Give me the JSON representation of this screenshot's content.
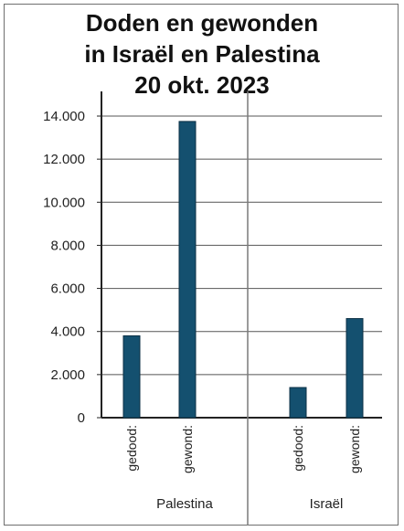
{
  "title_lines": [
    "Doden en gewonden",
    "in Israël en Palestina",
    "20 okt. 2023"
  ],
  "colors": {
    "bar": "#14506f",
    "bar_edge": "#0b2f44",
    "grid": "#555555",
    "axis": "#222222"
  },
  "chart_data": {
    "type": "bar",
    "title": "Doden en gewonden in Israël en Palestina 20 okt. 2023",
    "groups": [
      {
        "name": "Palestina",
        "categories": [
          "gedood:",
          "gewond:"
        ],
        "values": [
          3800,
          13750
        ]
      },
      {
        "name": "Israël",
        "categories": [
          "gedood:",
          "gewond:"
        ],
        "values": [
          1400,
          4600
        ]
      }
    ],
    "ylim": [
      0,
      14000
    ],
    "yticks": [
      0,
      2000,
      4000,
      6000,
      8000,
      10000,
      12000,
      14000
    ],
    "ytick_labels": [
      "0",
      "2.000",
      "4.000",
      "6.000",
      "8.000",
      "10.000",
      "12.000",
      "14.000"
    ],
    "grid": true,
    "legend": "none"
  }
}
